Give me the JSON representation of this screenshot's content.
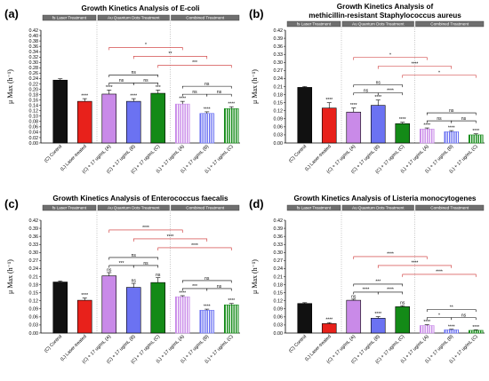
{
  "colors": {
    "control": "#111111",
    "laser": "#e8211b",
    "au_a": "#c98ae8",
    "au_b": "#6b72f2",
    "au_c": "#138a17",
    "black_bracket": "#000000",
    "red_bracket": "#cc2a2a",
    "header_fill": "#6f6f6f"
  },
  "chart_data": [
    {
      "type": "bar",
      "panel_label": "(a)",
      "title": "Growth Kinetics Analysis of E-coli",
      "ylabel": "μ Max (h⁻¹)",
      "ylim": [
        0,
        0.42
      ],
      "yticks": [
        "0.00",
        "0.02",
        "0.04",
        "0.06",
        "0.08",
        "0.10",
        "0.12",
        "0.14",
        "0.16",
        "0.18",
        "0.20",
        "0.22",
        "0.24",
        "0.26",
        "0.28",
        "0.30",
        "0.32",
        "0.34",
        "0.36",
        "0.38",
        "0.40",
        "0.42"
      ],
      "groups": [
        "fs Laser Treatment",
        "Au Quantum Dots Treatment",
        "Combined Treatment"
      ],
      "categories": [
        "(C) Control",
        "(L) Laser-treated",
        "(C) + 17 ug/mL (A)",
        "(C) + 17 ug/mL (B)",
        "(C) + 17 ug/mL (C)",
        "(L) + 17 ug/mL (A)",
        "(L) + 17 ug/mL (B)",
        "(L) + 17 ug/mL (C)"
      ],
      "values": [
        0.234,
        0.155,
        0.182,
        0.155,
        0.185,
        0.145,
        0.11,
        0.128
      ],
      "errors": [
        0.005,
        0.01,
        0.015,
        0.01,
        0.012,
        0.01,
        0.006,
        0.007
      ],
      "bar_sig": [
        "",
        "****",
        "****",
        "****",
        "***",
        "****",
        "****",
        "****"
      ],
      "black_brackets": [
        {
          "from": 2,
          "to": 3,
          "level": 0,
          "label": "ns"
        },
        {
          "from": 3,
          "to": 4,
          "level": 0,
          "label": "ns"
        },
        {
          "from": 2,
          "to": 4,
          "level": 1,
          "label": "ns"
        },
        {
          "from": 5,
          "to": 6,
          "level": 0,
          "label": "ns"
        },
        {
          "from": 6,
          "to": 7,
          "level": 0,
          "label": "ns"
        },
        {
          "from": 5,
          "to": 7,
          "level": 1,
          "label": "ns"
        }
      ],
      "red_brackets": [
        {
          "from": 2,
          "to": 5,
          "label": "*"
        },
        {
          "from": 3,
          "to": 6,
          "label": "**"
        },
        {
          "from": 4,
          "to": 7,
          "label": "***"
        }
      ]
    },
    {
      "type": "bar",
      "panel_label": "(b)",
      "title": "Growth Kinetics Analysis of",
      "subtitle": "methicillin-resistant Staphylococcus aureus",
      "ylabel": "μ Max (h⁻¹)",
      "ylim": [
        0,
        0.42
      ],
      "yticks": [
        "0.00",
        "0.03",
        "0.06",
        "0.09",
        "0.12",
        "0.15",
        "0.18",
        "0.21",
        "0.24",
        "0.27",
        "0.30",
        "0.33",
        "0.36",
        "0.39",
        "0.42"
      ],
      "groups": [
        "fs Laser Treatment",
        "Au Quantum Dots Treatment",
        "Combined Treatment"
      ],
      "categories": [
        "(C) Control",
        "(L) Laser-treated",
        "(C) + 17 ug/mL (A)",
        "(C) + 17 ug/mL (B)",
        "(C) + 17 ug/mL (C)",
        "(L) + 17 ug/mL (A)",
        "(L) + 17 ug/mL (B)",
        "(L) + 17 ug/mL (C)"
      ],
      "values": [
        0.207,
        0.13,
        0.115,
        0.14,
        0.072,
        0.052,
        0.042,
        0.03
      ],
      "errors": [
        0.003,
        0.02,
        0.015,
        0.02,
        0.005,
        0.004,
        0.004,
        0.004
      ],
      "bar_sig": [
        "",
        "****",
        "****",
        "****",
        "****",
        "****",
        "****",
        "****"
      ],
      "black_brackets": [
        {
          "from": 2,
          "to": 3,
          "level": 0,
          "label": "ns"
        },
        {
          "from": 3,
          "to": 4,
          "level": 0,
          "label": "****"
        },
        {
          "from": 2,
          "to": 4,
          "level": 1,
          "label": "ns"
        },
        {
          "from": 5,
          "to": 6,
          "level": 0,
          "label": "ns"
        },
        {
          "from": 6,
          "to": 7,
          "level": 0,
          "label": "ns"
        },
        {
          "from": 5,
          "to": 7,
          "level": 1,
          "label": "ns"
        }
      ],
      "red_brackets": [
        {
          "from": 2,
          "to": 5,
          "label": "*"
        },
        {
          "from": 3,
          "to": 6,
          "label": "****"
        },
        {
          "from": 4,
          "to": 7,
          "label": "*"
        }
      ]
    },
    {
      "type": "bar",
      "panel_label": "(c)",
      "title": "Growth Kinetics Analysis of Enterococcus faecalis",
      "ylabel": "μ Max (h⁻¹)",
      "ylim": [
        0,
        0.42
      ],
      "yticks": [
        "0.00",
        "0.03",
        "0.06",
        "0.09",
        "0.12",
        "0.15",
        "0.18",
        "0.21",
        "0.24",
        "0.27",
        "0.30",
        "0.33",
        "0.36",
        "0.39",
        "0.42"
      ],
      "groups": [
        "fs Laser Treatment",
        "Au Quantum Dots Treatment",
        "Combined Treatment"
      ],
      "categories": [
        "(C) Control",
        "(L) Laser-treated",
        "(C) + 17 ug/mL (A)",
        "(C) + 17 ug/mL (B)",
        "(C) + 17 ug/mL (C)",
        "(L) + 17 ug/mL (A)",
        "(L) + 17 ug/mL (B)",
        "(L) + 17 ug/mL (C)"
      ],
      "values": [
        0.19,
        0.122,
        0.213,
        0.17,
        0.188,
        0.135,
        0.085,
        0.105
      ],
      "errors": [
        0.004,
        0.008,
        0.012,
        0.015,
        0.018,
        0.004,
        0.004,
        0.005
      ],
      "bar_sig": [
        "",
        "****",
        "ns",
        "ns",
        "ns",
        "****",
        "****",
        "****"
      ],
      "black_brackets": [
        {
          "from": 2,
          "to": 3,
          "level": 0,
          "label": "***"
        },
        {
          "from": 3,
          "to": 4,
          "level": 0,
          "label": "ns"
        },
        {
          "from": 2,
          "to": 4,
          "level": 1,
          "label": "ns"
        },
        {
          "from": 5,
          "to": 6,
          "level": 0,
          "label": "***"
        },
        {
          "from": 6,
          "to": 7,
          "level": 0,
          "label": "ns"
        },
        {
          "from": 5,
          "to": 7,
          "level": 1,
          "label": "ns"
        }
      ],
      "red_brackets": [
        {
          "from": 2,
          "to": 5,
          "label": "****"
        },
        {
          "from": 3,
          "to": 6,
          "label": "****"
        },
        {
          "from": 4,
          "to": 7,
          "label": "****"
        }
      ]
    },
    {
      "type": "bar",
      "panel_label": "(d)",
      "title": "Growth Kinetics Analysis of Listeria monocytogenes",
      "ylabel": "μ Max (h⁻¹)",
      "ylim": [
        0,
        0.42
      ],
      "yticks": [
        "0.00",
        "0.03",
        "0.06",
        "0.09",
        "0.12",
        "0.15",
        "0.18",
        "0.21",
        "0.24",
        "0.27",
        "0.30",
        "0.33",
        "0.36",
        "0.39",
        "0.42"
      ],
      "groups": [
        "fs Laser Treatment",
        "Au Quantum Dots Treatment",
        "Combined Treatment"
      ],
      "categories": [
        "(C) Control",
        "(L) Laser-treated",
        "(C) + 17 ug/mL (A)",
        "(C) + 17 ug/mL (B)",
        "(C) + 17 ug/mL (C)",
        "(L) + 17 ug/mL (A)",
        "(L) + 17 ug/mL (B)",
        "(L) + 17 ug/mL (C)"
      ],
      "values": [
        0.11,
        0.035,
        0.122,
        0.055,
        0.098,
        0.028,
        0.012,
        0.01
      ],
      "errors": [
        0.003,
        0.004,
        0.004,
        0.006,
        0.004,
        0.003,
        0.002,
        0.002
      ],
      "bar_sig": [
        "",
        "****",
        "ns",
        "****",
        "ns",
        "****",
        "****",
        "****"
      ],
      "black_brackets": [
        {
          "from": 2,
          "to": 3,
          "level": 0,
          "label": "****"
        },
        {
          "from": 3,
          "to": 4,
          "level": 0,
          "label": "****"
        },
        {
          "from": 2,
          "to": 4,
          "level": 1,
          "label": "***"
        },
        {
          "from": 5,
          "to": 6,
          "level": 0,
          "label": "*"
        },
        {
          "from": 6,
          "to": 7,
          "level": 0,
          "label": "ns"
        },
        {
          "from": 5,
          "to": 7,
          "level": 1,
          "label": "**"
        }
      ],
      "red_brackets": [
        {
          "from": 2,
          "to": 5,
          "label": "****"
        },
        {
          "from": 3,
          "to": 6,
          "label": "****"
        },
        {
          "from": 4,
          "to": 7,
          "label": "****"
        }
      ]
    }
  ]
}
